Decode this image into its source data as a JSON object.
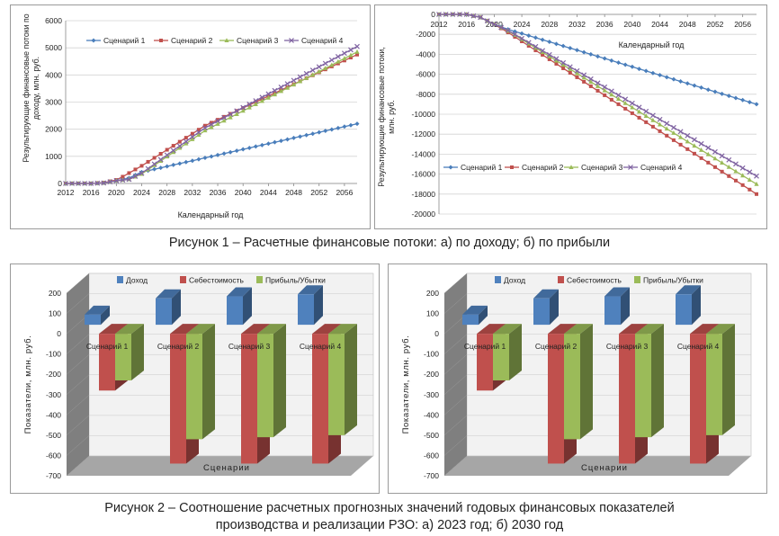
{
  "figure1": {
    "caption": "Рисунок 1 – Расчетные финансовые потоки: а) по доходу; б) по прибыли",
    "colors": {
      "s1": "#4a7ebb",
      "s2": "#c0504d",
      "s3": "#9bbb59",
      "s4": "#8064a2"
    }
  },
  "figure2": {
    "caption_line1": "Рисунок 2 – Соотношение расчетных прогнозных значений годовых финансовых показателей",
    "caption_line2": "производства и реализации РЗО: а) 2023 год; б) 2030 год",
    "colors": {
      "income": "#4f81bd",
      "cost": "#c0504d",
      "profit": "#9bbb59"
    }
  },
  "chart_data": [
    {
      "type": "line",
      "panel": "1a",
      "title": "",
      "xlabel": "Календарный год",
      "ylabel": "Результирующие финансовые потоки по доходу, млн. руб.",
      "xlim": [
        2012,
        2058
      ],
      "ylim": [
        0,
        6000
      ],
      "yticks": [
        0,
        1000,
        2000,
        3000,
        4000,
        5000,
        6000
      ],
      "xticks": [
        2012,
        2016,
        2020,
        2024,
        2028,
        2032,
        2036,
        2040,
        2044,
        2048,
        2052,
        2056
      ],
      "legend_position": "top",
      "series": [
        {
          "name": "Сценарий 1",
          "points": [
            [
              2012,
              0
            ],
            [
              2016,
              0
            ],
            [
              2018,
              20
            ],
            [
              2020,
              100
            ],
            [
              2022,
              200
            ],
            [
              2024,
              420
            ],
            [
              2058,
              2200
            ]
          ]
        },
        {
          "name": "Сценарий 2",
          "points": [
            [
              2012,
              0
            ],
            [
              2016,
              0
            ],
            [
              2018,
              30
            ],
            [
              2020,
              130
            ],
            [
              2021,
              250
            ],
            [
              2024,
              650
            ],
            [
              2034,
              2130
            ],
            [
              2058,
              4750
            ]
          ]
        },
        {
          "name": "Сценарий 3",
          "points": [
            [
              2012,
              0
            ],
            [
              2016,
              0
            ],
            [
              2018,
              20
            ],
            [
              2020,
              100
            ],
            [
              2022,
              150
            ],
            [
              2024,
              350
            ],
            [
              2034,
              1950
            ],
            [
              2058,
              4850
            ]
          ]
        },
        {
          "name": "Сценарий 4",
          "points": [
            [
              2012,
              0
            ],
            [
              2016,
              0
            ],
            [
              2018,
              20
            ],
            [
              2020,
              100
            ],
            [
              2022,
              150
            ],
            [
              2024,
              380
            ],
            [
              2034,
              2050
            ],
            [
              2058,
              5050
            ]
          ]
        }
      ]
    },
    {
      "type": "line",
      "panel": "1b",
      "title": "",
      "xlabel": "Календарный год",
      "ylabel": "Результирующие финансовые потоки, млн. руб.",
      "xlim": [
        2012,
        2058
      ],
      "ylim": [
        -20000,
        0
      ],
      "yticks": [
        0,
        -2000,
        -4000,
        -6000,
        -8000,
        -10000,
        -12000,
        -14000,
        -16000,
        -18000,
        -20000
      ],
      "xticks": [
        2012,
        2016,
        2020,
        2024,
        2028,
        2032,
        2036,
        2040,
        2044,
        2048,
        2052,
        2056
      ],
      "legend_position": "bottom-left",
      "series": [
        {
          "name": "Сценарий 1",
          "points": [
            [
              2012,
              0
            ],
            [
              2016,
              0
            ],
            [
              2018,
              -300
            ],
            [
              2020,
              -1000
            ],
            [
              2022,
              -1500
            ],
            [
              2058,
              -9000
            ]
          ]
        },
        {
          "name": "Сценарий 2",
          "points": [
            [
              2012,
              0
            ],
            [
              2016,
              0
            ],
            [
              2018,
              -300
            ],
            [
              2020,
              -1000
            ],
            [
              2022,
              -1800
            ],
            [
              2058,
              -18000
            ]
          ]
        },
        {
          "name": "Сценарий 3",
          "points": [
            [
              2012,
              0
            ],
            [
              2016,
              0
            ],
            [
              2018,
              -300
            ],
            [
              2020,
              -1000
            ],
            [
              2022,
              -1650
            ],
            [
              2058,
              -17000
            ]
          ]
        },
        {
          "name": "Сценарий 4",
          "points": [
            [
              2012,
              0
            ],
            [
              2016,
              0
            ],
            [
              2018,
              -300
            ],
            [
              2020,
              -1000
            ],
            [
              2022,
              -1600
            ],
            [
              2058,
              -16200
            ]
          ]
        }
      ]
    },
    {
      "type": "bar",
      "panel": "2a",
      "title": "",
      "xlabel": "Сценарии",
      "ylabel": "Показатели, млн. руб.",
      "ylim": [
        -700,
        200
      ],
      "yticks": [
        200,
        100,
        0,
        -100,
        -200,
        -300,
        -400,
        -500,
        -600,
        -700
      ],
      "categories": [
        "Сценарий 1",
        "Сценарий 2",
        "Сценарий 3",
        "Сценарий 4"
      ],
      "legend_position": "top",
      "series": [
        {
          "name": "Доход",
          "values": [
            50,
            130,
            140,
            150
          ]
        },
        {
          "name": "Себестоимость",
          "values": [
            -280,
            -640,
            -640,
            -640
          ]
        },
        {
          "name": "Прибыль/Убытки",
          "values": [
            -230,
            -520,
            -510,
            -500
          ]
        }
      ]
    },
    {
      "type": "bar",
      "panel": "2b",
      "title": "",
      "xlabel": "Сценарии",
      "ylabel": "Показатели, млн. руб.",
      "ylim": [
        -700,
        200
      ],
      "yticks": [
        200,
        100,
        0,
        -100,
        -200,
        -300,
        -400,
        -500,
        -600,
        -700
      ],
      "categories": [
        "Сценарий 1",
        "Сценарий 2",
        "Сценарий 3",
        "Сценарий 4"
      ],
      "legend_position": "top",
      "series": [
        {
          "name": "Доход",
          "values": [
            50,
            130,
            140,
            150
          ]
        },
        {
          "name": "Себестоимость",
          "values": [
            -280,
            -640,
            -640,
            -640
          ]
        },
        {
          "name": "Прибыль/Убытки",
          "values": [
            -230,
            -520,
            -510,
            -500
          ]
        }
      ]
    }
  ]
}
